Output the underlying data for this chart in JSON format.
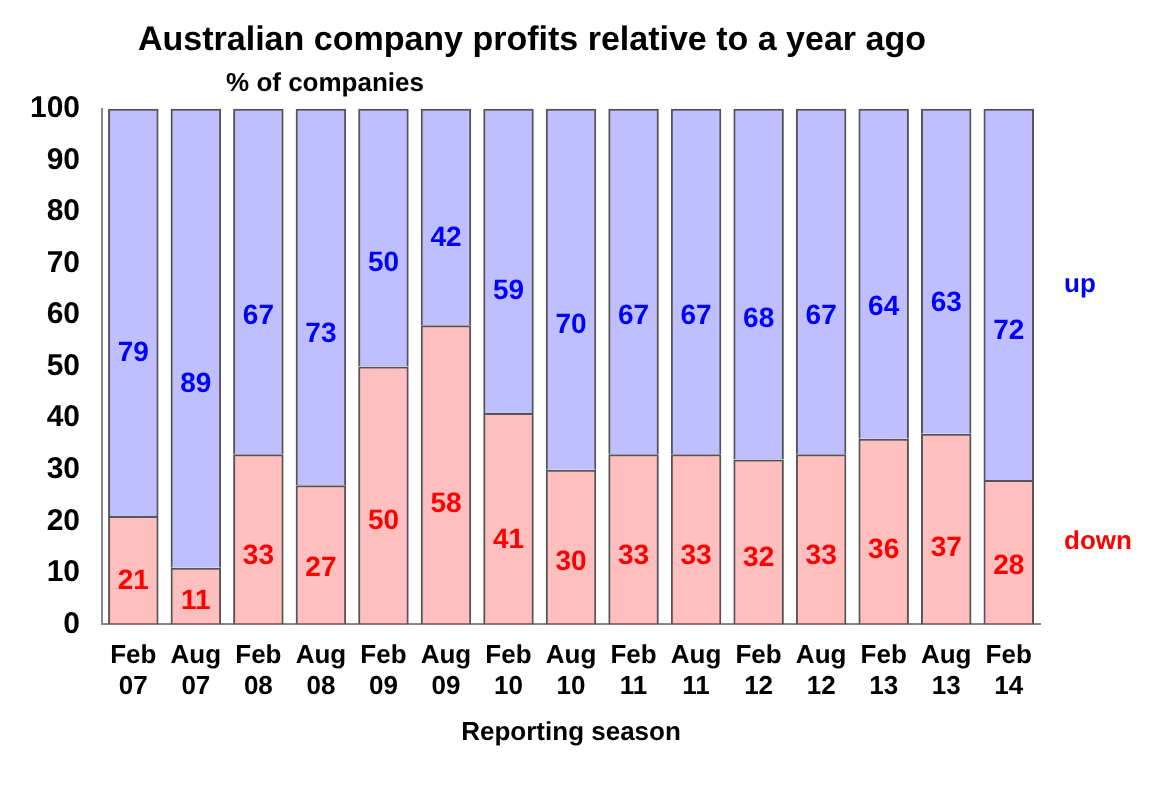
{
  "chart_data": {
    "type": "bar",
    "title": "Australian company profits relative to a year ago",
    "ylabel": "% of companies",
    "xlabel": "Reporting season",
    "categories": [
      "Feb 07",
      "Aug 07",
      "Feb 08",
      "Aug 08",
      "Feb 09",
      "Aug 09",
      "Feb 10",
      "Aug 10",
      "Feb 11",
      "Aug 11",
      "Feb 12",
      "Aug 12",
      "Feb 13",
      "Aug 13",
      "Feb 14"
    ],
    "stacked": true,
    "ylim": [
      0,
      100
    ],
    "yticks": [
      0,
      10,
      20,
      30,
      40,
      50,
      60,
      70,
      80,
      90,
      100
    ],
    "grid": false,
    "legend": false,
    "data_labels": true,
    "series": [
      {
        "name": "down",
        "color": "#ff0000",
        "values": [
          21,
          11,
          33,
          27,
          50,
          58,
          41,
          30,
          33,
          33,
          32,
          33,
          36,
          37,
          28
        ]
      },
      {
        "name": "up",
        "color": "#0000ff",
        "values": [
          79,
          89,
          67,
          73,
          50,
          42,
          59,
          70,
          67,
          67,
          68,
          67,
          64,
          63,
          72
        ]
      }
    ]
  }
}
